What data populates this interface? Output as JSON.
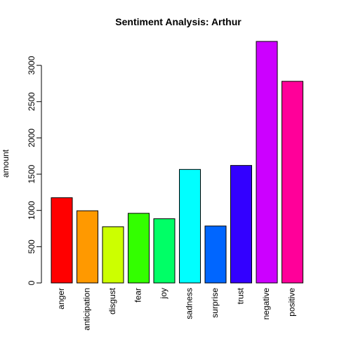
{
  "chart_data": {
    "type": "bar",
    "title": "Sentiment Analysis: Arthur",
    "xlabel": "",
    "ylabel": "amount",
    "categories": [
      "anger",
      "anticipation",
      "disgust",
      "fear",
      "joy",
      "sadness",
      "surprise",
      "trust",
      "negative",
      "positive"
    ],
    "values": [
      1175,
      995,
      775,
      960,
      885,
      1565,
      785,
      1620,
      3330,
      2780
    ],
    "colors": [
      "#FF0000",
      "#FF9900",
      "#CCFF00",
      "#33FF00",
      "#00FF66",
      "#00FFFF",
      "#0066FF",
      "#3300FF",
      "#CC00FF",
      "#FF0099"
    ],
    "yticks": [
      0,
      500,
      1000,
      1500,
      2000,
      2500,
      3000
    ],
    "ylim": [
      0,
      3330
    ],
    "grid": false,
    "legend": "none"
  }
}
